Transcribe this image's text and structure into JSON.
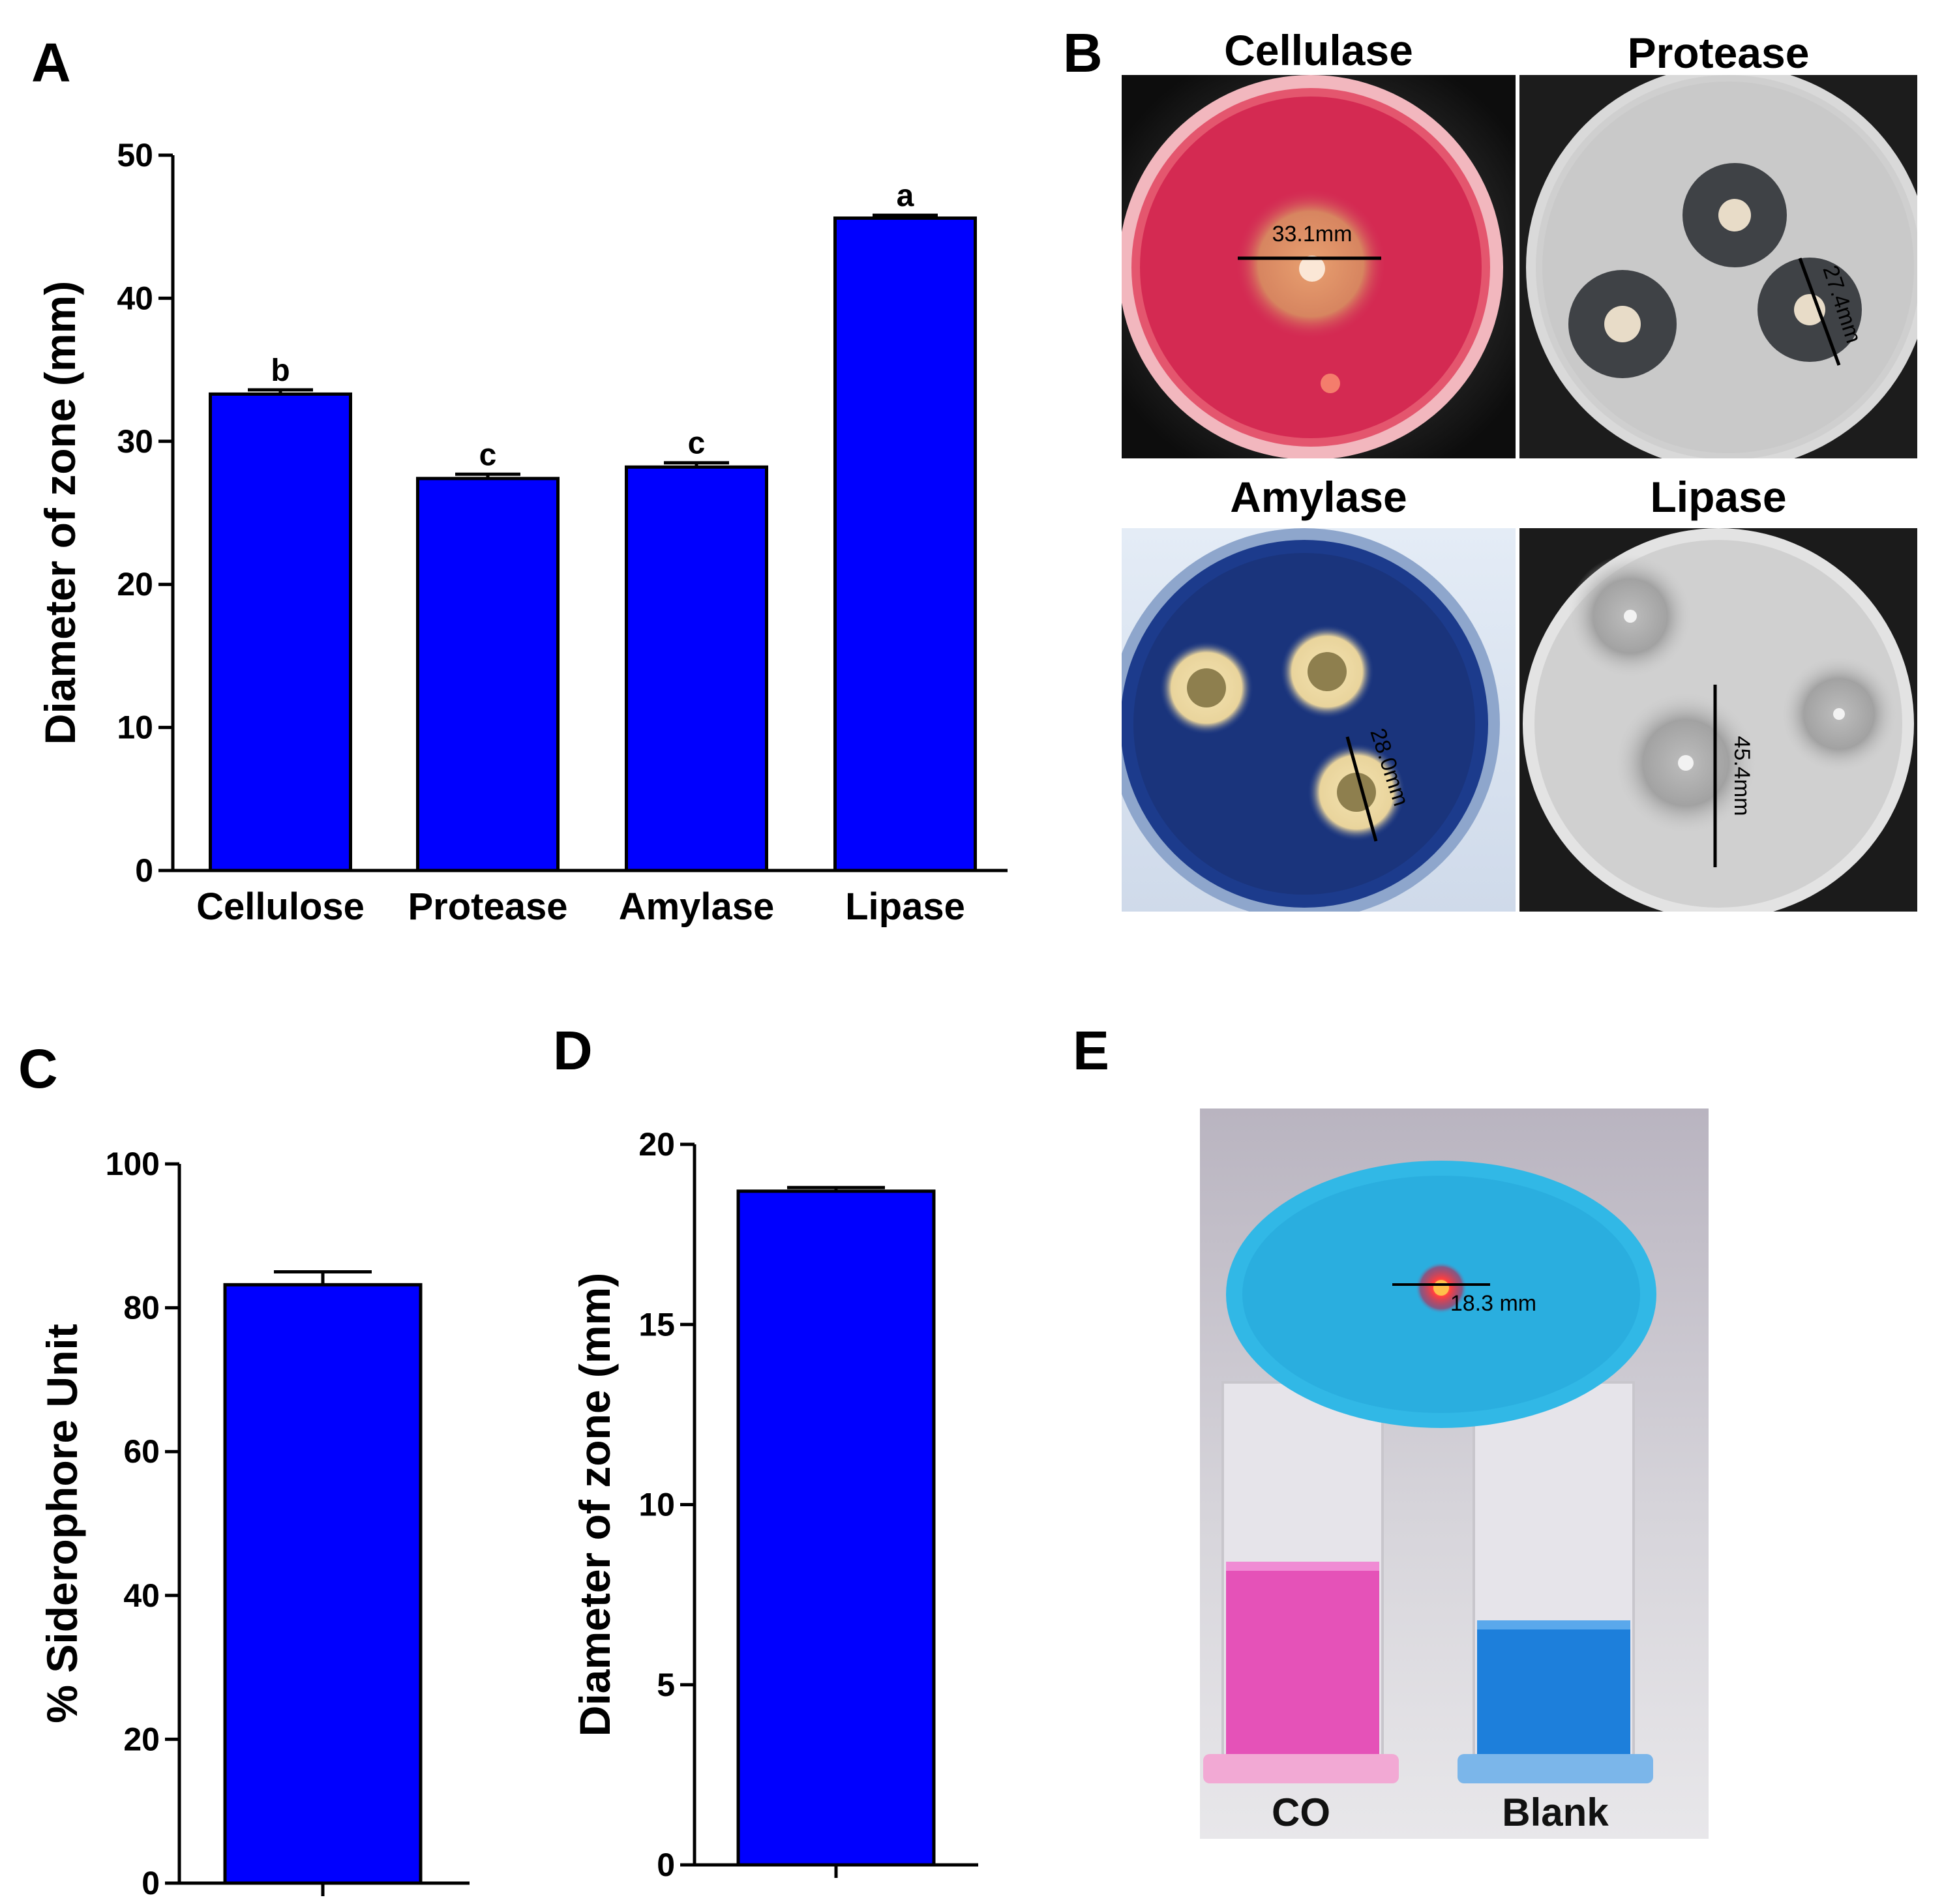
{
  "chart_data": [
    {
      "panel": "A",
      "type": "bar",
      "categories": [
        "Cellulose",
        "Protease",
        "Amylase",
        "Lipase"
      ],
      "values": [
        33.3,
        27.4,
        28.2,
        45.6
      ],
      "errors": [
        0.3,
        0.3,
        0.3,
        0.2
      ],
      "significance": [
        "b",
        "c",
        "c",
        "a"
      ],
      "xlabel": "",
      "ylabel": "Diameter of zone (mm)",
      "ylim": [
        0,
        50
      ],
      "yticks": [
        0,
        10,
        20,
        30,
        40,
        50
      ],
      "bar_color": "#0000ff"
    },
    {
      "panel": "C",
      "type": "bar",
      "categories": [
        ""
      ],
      "values": [
        83.2
      ],
      "errors": [
        1.8
      ],
      "xlabel": "",
      "ylabel": "% Siderophore Unit",
      "ylim": [
        0,
        100
      ],
      "yticks": [
        0,
        20,
        40,
        60,
        80,
        100
      ],
      "bar_color": "#0000ff"
    },
    {
      "panel": "D",
      "type": "bar",
      "categories": [
        ""
      ],
      "values": [
        18.7
      ],
      "errors": [
        0.1
      ],
      "xlabel": "",
      "ylabel": "Diameter of zone (mm)",
      "ylim": [
        0,
        20
      ],
      "yticks": [
        0,
        5,
        10,
        15,
        20
      ],
      "bar_color": "#0000ff"
    }
  ],
  "panels": {
    "a_letter": "A",
    "b_letter": "B",
    "c_letter": "C",
    "d_letter": "D",
    "e_letter": "E"
  },
  "photos": {
    "cellulase": {
      "title": "Cellulase",
      "measure": "33.1mm"
    },
    "protease": {
      "title": "Protease",
      "measure": "27.4mm"
    },
    "amylase": {
      "title": "Amylase",
      "measure": "28.0mm"
    },
    "lipase": {
      "title": "Lipase",
      "measure": "45.4mm"
    },
    "siderophore": {
      "measure": "18.3 mm",
      "tube_left": "CO",
      "tube_right": "Blank"
    }
  }
}
